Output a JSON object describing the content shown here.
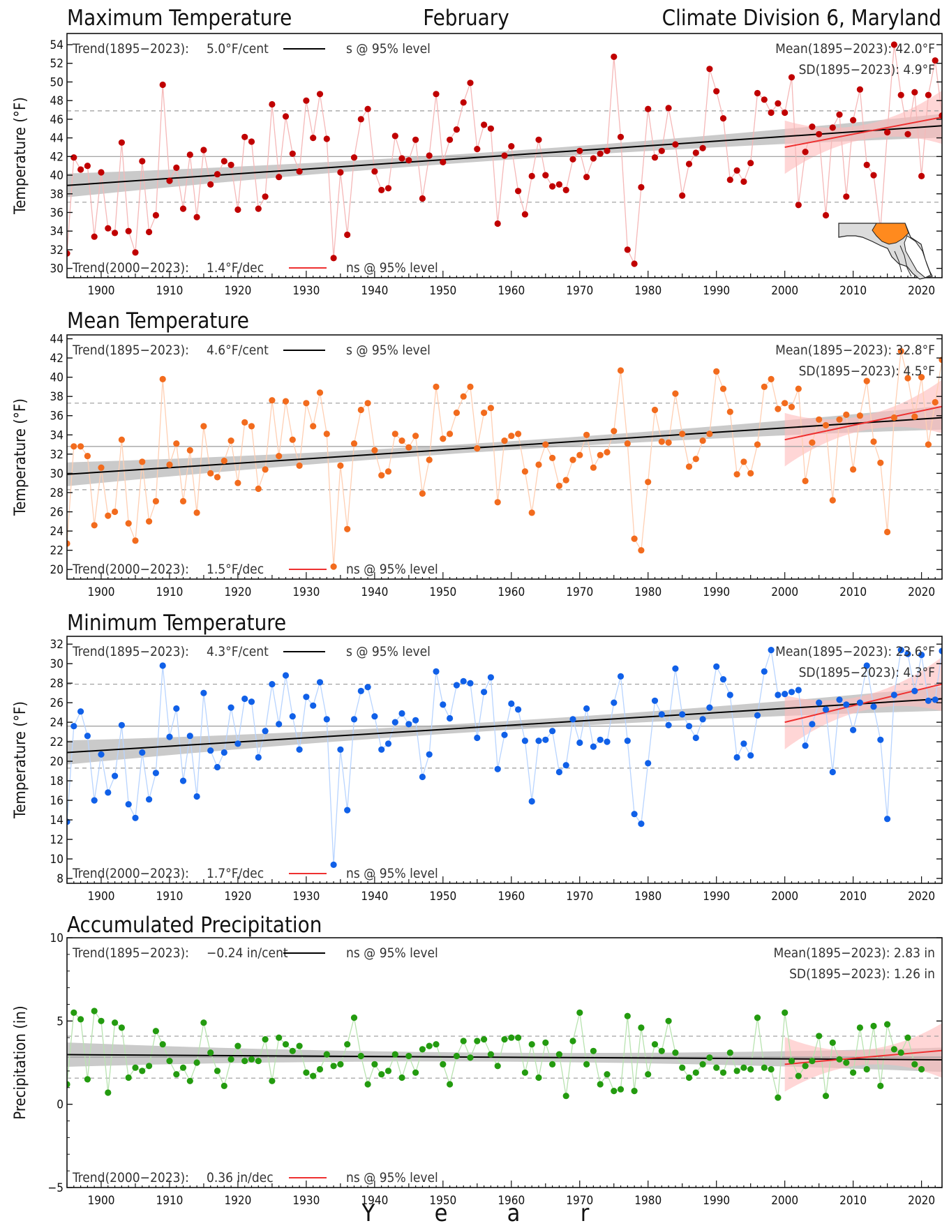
{
  "header": {
    "left_title": "Maximum Temperature",
    "center_title": "February",
    "right_title": "Climate Division 6, Maryland"
  },
  "x_axis_title": [
    "Y",
    "e",
    "a",
    "r"
  ],
  "colors": {
    "tmax": "#c00000",
    "tmean": "#f26b1d",
    "tmin": "#1060e8",
    "precip": "#239b0f",
    "trend_long": "#000000",
    "trend_recent": "#ee3030",
    "band_long": "#b8b8b8",
    "band_recent": "#ffbaba",
    "map_division": "#ff8a1e"
  },
  "chart_data": [
    {
      "type": "line",
      "title": "Maximum Temperature",
      "ylabel": "Temperature (°F)",
      "xlim": [
        1895,
        2023
      ],
      "ylim": [
        29,
        55.2
      ],
      "yticks": [
        30,
        32,
        34,
        36,
        38,
        40,
        42,
        44,
        46,
        48,
        50,
        52,
        54
      ],
      "xticks": [
        1900,
        1910,
        1920,
        1930,
        1940,
        1950,
        1960,
        1970,
        1980,
        1990,
        2000,
        2010,
        2020
      ],
      "grid": false,
      "start_year": 1895,
      "values": [
        31.6,
        41.9,
        40.6,
        41.0,
        33.4,
        40.3,
        34.3,
        33.8,
        43.5,
        34.0,
        31.7,
        41.5,
        33.9,
        35.7,
        49.7,
        39.4,
        40.8,
        36.4,
        42.2,
        35.5,
        42.7,
        39.0,
        40.1,
        41.5,
        41.1,
        36.3,
        44.1,
        43.6,
        36.4,
        37.7,
        47.6,
        39.8,
        46.3,
        42.3,
        40.4,
        48.0,
        44.0,
        48.7,
        43.9,
        31.1,
        40.3,
        33.6,
        41.9,
        46.0,
        47.1,
        40.4,
        38.4,
        38.6,
        44.2,
        41.8,
        41.6,
        43.8,
        37.5,
        42.1,
        48.7,
        41.4,
        43.8,
        44.9,
        47.8,
        49.9,
        42.8,
        45.4,
        45.0,
        34.8,
        42.1,
        43.1,
        38.3,
        35.8,
        39.9,
        43.8,
        40.0,
        38.8,
        39.0,
        38.4,
        41.7,
        42.6,
        39.8,
        41.8,
        42.3,
        42.6,
        52.7,
        44.1,
        32.0,
        30.5,
        38.7,
        47.1,
        41.9,
        42.6,
        47.2,
        43.3,
        37.8,
        41.2,
        42.4,
        42.9,
        51.4,
        49.0,
        46.1,
        39.5,
        40.5,
        39.3,
        41.3,
        48.8,
        48.1,
        46.7,
        47.7,
        46.7,
        50.5,
        36.8,
        42.5,
        45.2,
        44.4,
        35.7,
        45.1,
        46.5,
        37.7,
        45.9,
        49.2,
        41.1,
        40.0,
        34.2,
        44.6,
        54.0,
        48.6,
        44.4,
        48.9,
        39.9,
        48.6,
        52.3,
        46.4
      ],
      "mean": 42.0,
      "sd": 4.9,
      "trend_long": {
        "per_year": 0.05,
        "at_1895": 38.9
      },
      "trend_recent": {
        "per_year": 0.14,
        "at_2000": 43.0
      },
      "annotations": {
        "trend_long_label": "Trend(1895−2023):",
        "trend_long_value": "5.0°F/cent",
        "trend_long_sig": "s @ 95% level",
        "trend_recent_label": "Trend(2000−2023):",
        "trend_recent_value": "1.4°F/dec",
        "trend_recent_sig": "ns @ 95% level",
        "mean_text": "Mean(1895−2023): 42.0°F",
        "sd_text": "SD(1895−2023): 4.9°F"
      }
    },
    {
      "type": "line",
      "title": "Mean Temperature",
      "ylabel": "Temperature (°F)",
      "xlim": [
        1895,
        2023
      ],
      "ylim": [
        19,
        44.4
      ],
      "yticks": [
        20,
        22,
        24,
        26,
        28,
        30,
        32,
        34,
        36,
        38,
        40,
        42,
        44
      ],
      "xticks": [
        1900,
        1910,
        1920,
        1930,
        1940,
        1950,
        1960,
        1970,
        1980,
        1990,
        2000,
        2010,
        2020
      ],
      "grid": false,
      "start_year": 1895,
      "values": [
        22.7,
        32.8,
        32.8,
        31.8,
        24.6,
        30.6,
        25.6,
        26.0,
        33.5,
        24.8,
        23.0,
        31.2,
        25.0,
        27.1,
        39.8,
        30.9,
        33.1,
        27.1,
        32.4,
        25.9,
        34.9,
        30.0,
        29.6,
        31.3,
        33.4,
        29.0,
        35.3,
        34.9,
        28.4,
        30.4,
        37.6,
        31.8,
        37.5,
        33.5,
        30.8,
        37.3,
        34.9,
        38.4,
        34.1,
        20.3,
        30.8,
        24.2,
        33.1,
        36.6,
        37.3,
        32.4,
        29.8,
        30.2,
        34.1,
        33.4,
        32.7,
        33.9,
        27.9,
        31.4,
        39.0,
        33.6,
        34.1,
        36.3,
        38.0,
        39.0,
        32.6,
        36.3,
        36.8,
        27.0,
        33.4,
        33.9,
        34.1,
        30.2,
        25.9,
        30.9,
        33.0,
        31.6,
        28.7,
        29.3,
        31.4,
        31.9,
        34.0,
        30.6,
        31.9,
        32.2,
        34.4,
        40.7,
        33.1,
        23.2,
        22.0,
        29.1,
        36.6,
        33.3,
        33.2,
        38.3,
        34.1,
        30.7,
        31.5,
        33.4,
        34.1,
        40.6,
        38.8,
        36.4,
        29.9,
        31.2,
        30.0,
        33.0,
        39.0,
        39.8,
        36.7,
        37.3,
        36.9,
        38.8,
        29.2,
        33.2,
        35.6,
        35.0,
        27.2,
        35.6,
        36.1,
        30.4,
        36.0,
        39.6,
        33.3,
        31.1,
        23.9,
        35.8,
        42.7,
        39.9,
        35.9,
        40.0,
        33.0,
        37.4,
        41.8
      ],
      "mean": 32.8,
      "sd": 4.5,
      "trend_long": {
        "per_year": 0.046,
        "at_1895": 29.9
      },
      "trend_recent": {
        "per_year": 0.15,
        "at_2000": 33.5
      },
      "annotations": {
        "trend_long_label": "Trend(1895−2023):",
        "trend_long_value": "4.6°F/cent",
        "trend_long_sig": "s @ 95% level",
        "trend_recent_label": "Trend(2000−2023):",
        "trend_recent_value": "1.5°F/dec",
        "trend_recent_sig": "ns @ 95% level",
        "mean_text": "Mean(1895−2023): 32.8°F",
        "sd_text": "SD(1895−2023): 4.5°F"
      }
    },
    {
      "type": "line",
      "title": "Minimum Temperature",
      "ylabel": "Temperature (°F)",
      "xlim": [
        1895,
        2023
      ],
      "ylim": [
        7.5,
        32.8
      ],
      "yticks": [
        8,
        10,
        12,
        14,
        16,
        18,
        20,
        22,
        24,
        26,
        28,
        30,
        32
      ],
      "xticks": [
        1900,
        1910,
        1920,
        1930,
        1940,
        1950,
        1960,
        1970,
        1980,
        1990,
        2000,
        2010,
        2020
      ],
      "grid": false,
      "start_year": 1895,
      "values": [
        13.8,
        23.6,
        25.1,
        22.6,
        16.0,
        20.7,
        16.8,
        18.5,
        23.7,
        15.6,
        14.2,
        20.9,
        16.1,
        18.8,
        29.8,
        22.5,
        25.4,
        18.0,
        22.6,
        16.4,
        27.0,
        21.1,
        19.4,
        20.9,
        25.5,
        21.8,
        26.4,
        26.1,
        20.4,
        23.1,
        27.9,
        23.8,
        28.8,
        24.6,
        21.2,
        26.6,
        25.7,
        28.1,
        24.3,
        9.4,
        21.2,
        15.0,
        24.3,
        27.2,
        27.6,
        24.6,
        21.2,
        21.8,
        24.0,
        24.9,
        23.8,
        24.2,
        18.4,
        20.7,
        29.2,
        25.8,
        24.4,
        27.8,
        28.2,
        28.0,
        22.4,
        27.1,
        28.6,
        19.2,
        22.7,
        25.9,
        25.3,
        22.1,
        15.9,
        22.1,
        22.2,
        23.1,
        18.9,
        19.6,
        24.3,
        21.9,
        25.4,
        21.5,
        22.2,
        22.0,
        26.0,
        28.7,
        22.1,
        14.6,
        13.6,
        19.8,
        26.2,
        24.8,
        23.7,
        29.5,
        24.8,
        23.6,
        22.4,
        24.3,
        25.5,
        29.7,
        28.4,
        26.8,
        20.4,
        21.8,
        20.6,
        24.7,
        29.2,
        31.4,
        26.8,
        26.9,
        27.1,
        27.3,
        21.6,
        23.8,
        26.0,
        25.3,
        18.9,
        26.3,
        25.8,
        23.2,
        26.0,
        29.8,
        25.6,
        22.2,
        14.1,
        26.8,
        31.4,
        31.0,
        27.2,
        30.9,
        26.2,
        26.3,
        31.3
      ],
      "mean": 23.6,
      "sd": 4.3,
      "trend_long": {
        "per_year": 0.043,
        "at_1895": 20.9
      },
      "trend_recent": {
        "per_year": 0.17,
        "at_2000": 24.0
      },
      "annotations": {
        "trend_long_label": "Trend(1895−2023):",
        "trend_long_value": "4.3°F/cent",
        "trend_long_sig": "s @ 95% level",
        "trend_recent_label": "Trend(2000−2023):",
        "trend_recent_value": "1.7°F/dec",
        "trend_recent_sig": "ns @ 95% level",
        "mean_text": "Mean(1895−2023): 23.6°F",
        "sd_text": "SD(1895−2023): 4.3°F"
      }
    },
    {
      "type": "line",
      "title": "Accumulated Precipitation",
      "ylabel": "Precipitation (in)",
      "xlim": [
        1895,
        2023
      ],
      "ylim": [
        -5,
        10
      ],
      "yticks": [
        -5,
        0,
        5,
        10
      ],
      "xticks": [
        1900,
        1910,
        1920,
        1930,
        1940,
        1950,
        1960,
        1970,
        1980,
        1990,
        2000,
        2010,
        2020
      ],
      "grid": false,
      "start_year": 1895,
      "values": [
        1.2,
        5.5,
        5.1,
        1.5,
        5.6,
        5.0,
        0.7,
        4.9,
        4.6,
        1.6,
        2.2,
        2.0,
        2.3,
        4.4,
        3.6,
        2.6,
        1.8,
        2.2,
        1.4,
        2.5,
        4.9,
        3.1,
        2.0,
        1.1,
        2.7,
        3.5,
        2.6,
        2.7,
        2.6,
        3.9,
        1.4,
        4.0,
        3.6,
        3.2,
        3.5,
        1.9,
        1.7,
        2.1,
        3.0,
        2.3,
        2.4,
        3.6,
        5.2,
        2.9,
        1.2,
        2.4,
        1.8,
        2.0,
        3.0,
        1.6,
        2.9,
        1.9,
        3.3,
        3.5,
        3.6,
        2.4,
        1.2,
        2.9,
        3.8,
        2.8,
        3.8,
        3.9,
        3.0,
        2.3,
        3.9,
        4.0,
        4.0,
        1.9,
        3.6,
        1.6,
        3.7,
        2.4,
        3.0,
        0.5,
        3.8,
        5.5,
        2.4,
        3.2,
        1.2,
        1.8,
        0.8,
        0.9,
        5.3,
        0.8,
        4.6,
        1.8,
        3.6,
        3.2,
        5.0,
        3.1,
        2.2,
        1.6,
        1.9,
        2.4,
        2.8,
        2.2,
        1.9,
        3.1,
        2.0,
        2.2,
        2.1,
        5.2,
        2.2,
        2.1,
        0.4,
        5.5,
        2.6,
        1.7,
        2.3,
        2.6,
        4.1,
        0.5,
        3.7,
        2.7,
        2.5,
        1.9,
        4.6,
        2.1,
        4.7,
        1.1,
        4.8,
        3.3,
        3.1,
        4.0,
        2.4,
        2.1
      ],
      "mean": 2.83,
      "sd": 1.26,
      "trend_long": {
        "per_year": -0.0024,
        "at_1895": 2.98
      },
      "trend_recent": {
        "per_year": 0.036,
        "at_2000": 2.4
      },
      "annotations": {
        "trend_long_label": "Trend(1895−2023):",
        "trend_long_value": "−0.24 in/cent",
        "trend_long_sig": "ns @ 95% level",
        "trend_recent_label": "Trend(2000−2023):",
        "trend_recent_value": "0.36 in/dec",
        "trend_recent_sig": "ns @ 95% level",
        "mean_text": "Mean(1895−2023): 2.83 in",
        "sd_text": "SD(1895−2023): 1.26 in"
      }
    }
  ]
}
